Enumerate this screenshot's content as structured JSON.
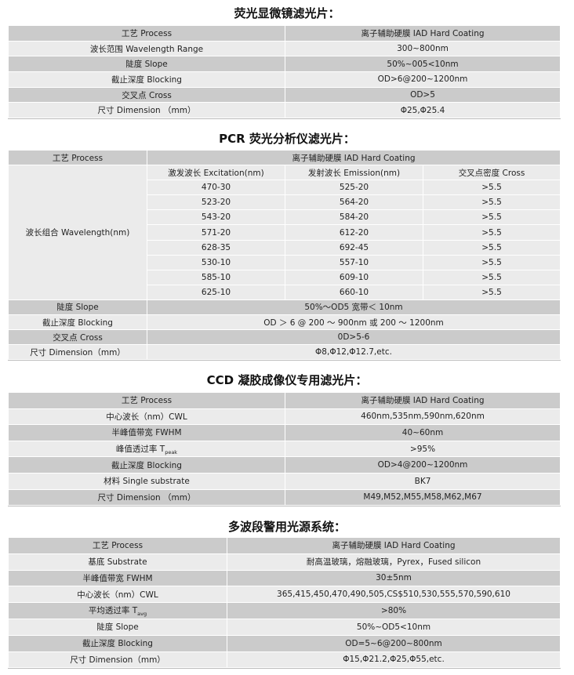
{
  "sections": [
    {
      "title": "荧光显微镜滤光片：",
      "header": [
        "工艺 Process",
        "离子辅助硬膜 IAD Hard Coating"
      ],
      "rows": [
        [
          "波长范围 Wavelength Range",
          "300~800nm"
        ],
        [
          "陡度 Slope",
          "50%~005<10nm"
        ],
        [
          "截止深度 Blocking",
          "OD>6@200~1200nm"
        ],
        [
          "交叉点 Cross",
          "OD>5"
        ],
        [
          "尺寸 Dimension （mm）",
          "Φ25,Φ25.4"
        ]
      ]
    },
    {
      "title": "PCR 荧光分析仪滤光片：",
      "header": [
        "工艺 Process",
        "离子辅助硬膜 IAD Hard Coating"
      ],
      "group_label": "波长组合 Wavelength(nm)",
      "sub_header": [
        "激发波长 Excitation(nm)",
        "发射波长 Emission(nm)",
        "交叉点密度 Cross"
      ],
      "wavelength_rows": [
        [
          "470-30",
          "525-20",
          ">5.5"
        ],
        [
          "523-20",
          "564-20",
          ">5.5"
        ],
        [
          "543-20",
          "584-20",
          ">5.5"
        ],
        [
          "571-20",
          "612-20",
          ">5.5"
        ],
        [
          "628-35",
          "692-45",
          ">5.5"
        ],
        [
          "530-10",
          "557-10",
          ">5.5"
        ],
        [
          "585-10",
          "609-10",
          ">5.5"
        ],
        [
          "625-10",
          "660-10",
          ">5.5"
        ]
      ],
      "rows": [
        [
          "陡度 Slope",
          "50%～OD5 宽带＜ 10nm"
        ],
        [
          "截止深度 Blocking",
          "OD ＞ 6 @ 200 ～ 900nm 或 200 ～ 1200nm"
        ],
        [
          "交叉点 Cross",
          "0D>5-6"
        ],
        [
          "尺寸 Dimension（mm）",
          "Φ8,Φ12,Φ12.7,etc."
        ]
      ]
    },
    {
      "title": "CCD 凝胶成像仪专用滤光片：",
      "header": [
        "工艺 Process",
        "离子辅助硬膜 IAD Hard Coating"
      ],
      "rows": [
        [
          "中心波长（nm）CWL",
          "460nm,535nm,590nm,620nm"
        ],
        [
          "半峰值带宽 FWHM",
          "40~60nm"
        ],
        [
          "峰值透过率 T",
          ">95%",
          "peak"
        ],
        [
          "截止深度 Blocking",
          "OD>4@200~1200nm"
        ],
        [
          "材料 Single substrate",
          "BK7"
        ],
        [
          "尺寸 Dimension （mm）",
          "M49,M52,M55,M58,M62,M67"
        ]
      ]
    },
    {
      "title": "多波段警用光源系统：",
      "header": [
        "工艺 Process",
        "离子辅助硬膜 IAD Hard Coating"
      ],
      "rows": [
        [
          "基底 Substrate",
          "耐高温玻璃，熔融玻璃，Pyrex，Fused silicon"
        ],
        [
          "半峰值带宽 FWHM",
          "30±5nm"
        ],
        [
          "中心波长（nm）CWL",
          "365,415,450,470,490,505,CS$510,530,555,570,590,610"
        ],
        [
          "平均透过率 T",
          ">80%",
          "avg"
        ],
        [
          "陡度 Slope",
          "50%~OD5<10nm"
        ],
        [
          "截止深度 Blocking",
          "OD=5~6@200~800nm"
        ],
        [
          "尺寸 Dimension（mm）",
          "Φ15,Φ21.2,Φ25,Φ55,etc."
        ]
      ]
    }
  ]
}
